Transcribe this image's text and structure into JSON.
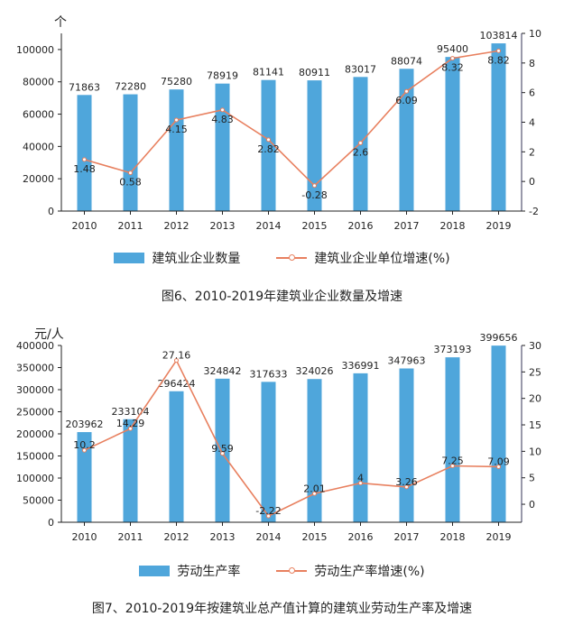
{
  "colors": {
    "bar": "#4fa6db",
    "line": "#e8805f",
    "axis": "#222222"
  },
  "chart_data": [
    {
      "type": "bar+line",
      "title": "图6、2010-2019年建筑业企业数量及增速",
      "y_unit": "个",
      "categories": [
        "2010",
        "2011",
        "2012",
        "2013",
        "2014",
        "2015",
        "2016",
        "2017",
        "2018",
        "2019"
      ],
      "series": [
        {
          "name": "建筑业企业数量",
          "type": "bar",
          "axis": "left",
          "values": [
            71863,
            72280,
            75280,
            78919,
            81141,
            80911,
            83017,
            88074,
            95400,
            103814
          ]
        },
        {
          "name": "建筑业企业单位增速(%)",
          "type": "line",
          "axis": "right",
          "values": [
            1.48,
            0.58,
            4.15,
            4.83,
            2.82,
            -0.28,
            2.6,
            6.09,
            8.32,
            8.82
          ]
        }
      ],
      "ylim": [
        0,
        110000
      ],
      "yticks": [
        0,
        20000,
        40000,
        60000,
        80000,
        100000
      ],
      "y2lim": [
        -2,
        10
      ],
      "y2ticks": [
        -2,
        0,
        2,
        4,
        6,
        8,
        10
      ],
      "legend": "bottom"
    },
    {
      "type": "bar+line",
      "title": "图7、2010-2019年按建筑业总产值计算的建筑业劳动生产率及增速",
      "y_unit": "元/人",
      "categories": [
        "2010",
        "2011",
        "2012",
        "2013",
        "2014",
        "2015",
        "2016",
        "2017",
        "2018",
        "2019"
      ],
      "series": [
        {
          "name": "劳动生产率",
          "type": "bar",
          "axis": "left",
          "values": [
            203962,
            233104,
            296424,
            324842,
            317633,
            324026,
            336991,
            347963,
            373193,
            399656
          ]
        },
        {
          "name": "劳动生产率增速(%)",
          "type": "line",
          "axis": "right",
          "values": [
            10.2,
            14.29,
            27.16,
            9.59,
            -2.22,
            2.01,
            4,
            3.26,
            7.25,
            7.09
          ]
        }
      ],
      "ylim": [
        0,
        400000
      ],
      "yticks": [
        0,
        50000,
        100000,
        150000,
        200000,
        250000,
        300000,
        350000,
        400000
      ],
      "y2lim": [
        -3.4,
        30
      ],
      "y2ticks": [
        0,
        5,
        10,
        15,
        20,
        25,
        30
      ],
      "legend": "bottom"
    }
  ]
}
